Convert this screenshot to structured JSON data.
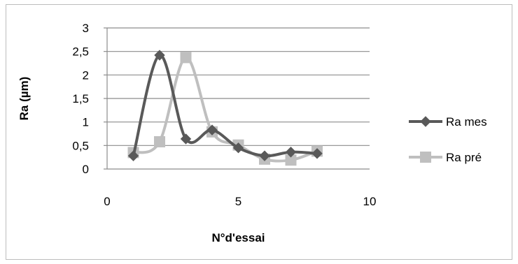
{
  "chart_data": {
    "type": "scatter",
    "title": "",
    "xlabel": "N°d'essai",
    "ylabel": "Ra (µm)",
    "xlim": [
      0,
      10
    ],
    "ylim": [
      0,
      3
    ],
    "x_ticks": [
      "0",
      "5",
      "10"
    ],
    "y_ticks": [
      "0",
      "0,5",
      "1",
      "1,5",
      "2",
      "2,5",
      "3"
    ],
    "grid": "horizontal",
    "legend_position": "right",
    "series": [
      {
        "name": "Ra mes",
        "color": "#595959",
        "marker": "diamond",
        "x": [
          1,
          2,
          3,
          4,
          5,
          6,
          7,
          8
        ],
        "y": [
          0.28,
          2.42,
          0.64,
          0.83,
          0.45,
          0.28,
          0.36,
          0.33
        ]
      },
      {
        "name": "Ra pré",
        "color": "#bfbfbf",
        "marker": "square",
        "x": [
          1,
          2,
          3,
          4,
          5,
          6,
          7,
          8
        ],
        "y": [
          0.35,
          0.58,
          2.37,
          0.79,
          0.51,
          0.21,
          0.19,
          0.38
        ]
      }
    ]
  }
}
